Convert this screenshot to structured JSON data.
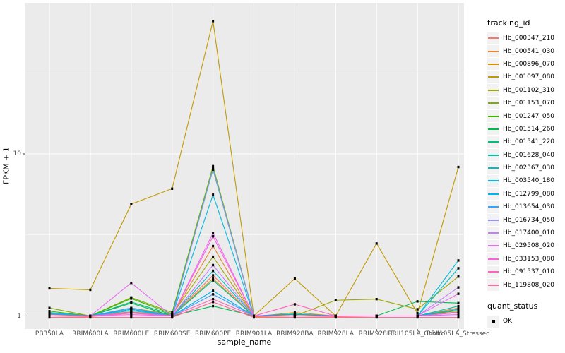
{
  "figure": {
    "background": "#FFFFFF",
    "panel_background": "#EBEBEB",
    "gridline_color": "#FFFFFF",
    "axis_text_color": "#4D4D4D",
    "tick_color": "#333333",
    "point_color": "#000000",
    "legend_key_background": "#F2F2F2"
  },
  "chart_data": {
    "type": "line",
    "title": "",
    "xlabel": "sample_name",
    "ylabel": "FPKM + 1",
    "y_scale": "log10",
    "y_ticks": [
      1,
      10
    ],
    "ylim": [
      0.93,
      85
    ],
    "grid": true,
    "legend_position": "right",
    "categories": [
      "PB350LA",
      "RRIM600LA",
      "RRIM600LE",
      "RRIM600SE",
      "RRIM600PE",
      "RRIM901LA",
      "RRIM928BA",
      "RRIM928LA",
      "RRIM928LE",
      "RRII105LA_Control",
      "RRII105LA_Stressed"
    ],
    "series": [
      {
        "name": "Hb_000347_210",
        "color": "#F8766D",
        "values": [
          1.0,
          0.99,
          1.04,
          1.0,
          1.78,
          0.99,
          1.0,
          0.99,
          1.0,
          1.0,
          1.06
        ]
      },
      {
        "name": "Hb_000541_030",
        "color": "#EA8331",
        "values": [
          1.02,
          1.0,
          1.1,
          1.01,
          2.7,
          0.99,
          1.0,
          1.0,
          1.0,
          1.0,
          1.12
        ]
      },
      {
        "name": "Hb_000896_070",
        "color": "#D89000",
        "values": [
          1.0,
          1.0,
          1.06,
          1.0,
          1.7,
          0.99,
          1.05,
          1.0,
          1.0,
          1.0,
          1.1
        ]
      },
      {
        "name": "Hb_001097_080",
        "color": "#C09B00",
        "values": [
          1.48,
          1.45,
          4.9,
          6.1,
          66.0,
          1.0,
          1.7,
          1.0,
          2.8,
          1.04,
          8.3
        ]
      },
      {
        "name": "Hb_001102_310",
        "color": "#A3A500",
        "values": [
          1.03,
          1.0,
          1.12,
          1.02,
          2.32,
          1.0,
          1.0,
          1.25,
          1.27,
          1.1,
          1.75
        ]
      },
      {
        "name": "Hb_001153_070",
        "color": "#7CAE00",
        "values": [
          1.12,
          1.0,
          1.3,
          1.05,
          8.4,
          1.0,
          1.0,
          1.0,
          1.0,
          1.0,
          1.05
        ]
      },
      {
        "name": "Hb_001247_050",
        "color": "#39B600",
        "values": [
          1.07,
          1.0,
          1.28,
          1.03,
          8.2,
          1.0,
          1.02,
          1.0,
          1.0,
          1.0,
          1.08
        ]
      },
      {
        "name": "Hb_001514_260",
        "color": "#00BB4E",
        "values": [
          1.0,
          1.0,
          1.2,
          1.0,
          1.15,
          1.0,
          1.0,
          1.0,
          1.0,
          1.23,
          1.2
        ]
      },
      {
        "name": "Hb_001541_220",
        "color": "#00BF7D",
        "values": [
          1.05,
          1.0,
          1.22,
          1.02,
          8.0,
          1.0,
          1.0,
          1.0,
          1.0,
          1.0,
          1.1
        ]
      },
      {
        "name": "Hb_001628_040",
        "color": "#00C1A3",
        "values": [
          1.0,
          1.0,
          1.1,
          1.0,
          1.66,
          1.0,
          1.0,
          1.0,
          1.0,
          1.0,
          1.15
        ]
      },
      {
        "name": "Hb_002367_030",
        "color": "#00BFC4",
        "values": [
          1.0,
          1.0,
          1.05,
          1.0,
          1.9,
          1.0,
          1.0,
          1.0,
          1.0,
          1.0,
          1.97
        ]
      },
      {
        "name": "Hb_003540_180",
        "color": "#00BAE0",
        "values": [
          1.0,
          1.0,
          1.08,
          1.0,
          5.6,
          1.0,
          1.0,
          1.0,
          1.0,
          1.0,
          2.2
        ]
      },
      {
        "name": "Hb_012799_080",
        "color": "#00B0F6",
        "values": [
          1.03,
          1.0,
          1.1,
          1.0,
          1.43,
          1.0,
          1.03,
          1.0,
          1.0,
          1.0,
          1.1
        ]
      },
      {
        "name": "Hb_013654_030",
        "color": "#35A2FF",
        "values": [
          1.04,
          1.0,
          1.12,
          1.0,
          1.36,
          1.0,
          1.0,
          1.0,
          1.0,
          1.0,
          1.05
        ]
      },
      {
        "name": "Hb_016734_050",
        "color": "#9590FF",
        "values": [
          1.0,
          1.0,
          1.05,
          1.0,
          8.1,
          1.0,
          1.0,
          1.0,
          1.0,
          1.0,
          1.0
        ]
      },
      {
        "name": "Hb_017400_010",
        "color": "#C77CFF",
        "values": [
          1.0,
          1.0,
          1.02,
          1.0,
          2.06,
          1.0,
          1.0,
          1.0,
          1.0,
          1.0,
          1.5
        ]
      },
      {
        "name": "Hb_029508_020",
        "color": "#E76BF3",
        "values": [
          1.0,
          1.0,
          1.6,
          1.0,
          3.25,
          1.0,
          1.0,
          1.0,
          1.0,
          1.0,
          1.37
        ]
      },
      {
        "name": "Hb_033153_080",
        "color": "#FA62DB",
        "values": [
          1.0,
          1.0,
          1.05,
          1.0,
          3.1,
          1.0,
          1.0,
          1.0,
          1.0,
          1.0,
          1.05
        ]
      },
      {
        "name": "Hb_091537_010",
        "color": "#FF62BC",
        "values": [
          1.0,
          1.0,
          1.0,
          1.0,
          1.27,
          1.0,
          1.18,
          1.0,
          1.0,
          1.0,
          1.02
        ]
      },
      {
        "name": "Hb_119808_020",
        "color": "#FF6A98",
        "values": [
          0.98,
          0.98,
          0.98,
          0.98,
          1.22,
          0.98,
          0.98,
          0.98,
          0.98,
          0.98,
          0.98
        ]
      }
    ],
    "legend": {
      "color_legend_title": "tracking_id",
      "shape_legend_title": "quant_status",
      "shape_legend_items": [
        {
          "label": "OK",
          "marker": "black-square"
        }
      ]
    }
  }
}
